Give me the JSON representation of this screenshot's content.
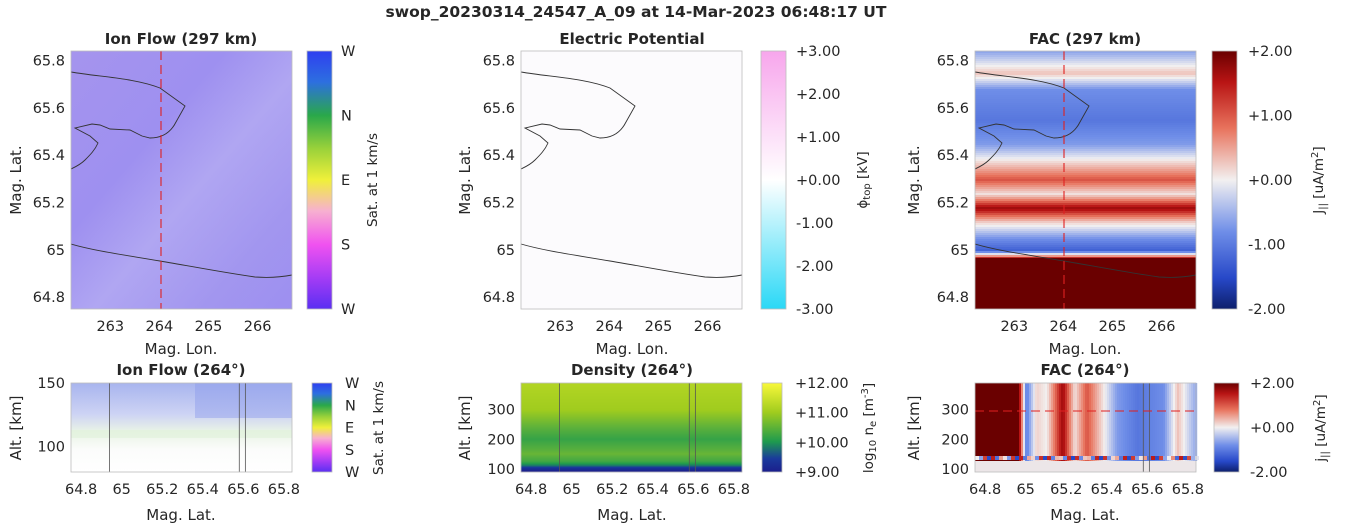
{
  "figure": {
    "title": "swop_20230314_24547_A_09 at 14-Mar-2023 06:48:17 UT"
  },
  "panels": {
    "ion_flow_map": {
      "title": "Ion Flow (297 km)",
      "xlabel": "Mag. Lon.",
      "ylabel": "Mag. Lat.",
      "xticks": [
        "263",
        "264",
        "265",
        "266"
      ],
      "yticks": [
        "65.8",
        "65.6",
        "65.4",
        "65.2",
        "65",
        "64.8"
      ],
      "cbar_label": "Sat. at 1 km/s",
      "cbar_ticks": [
        "W",
        "N",
        "E",
        "S",
        "W"
      ]
    },
    "potential_map": {
      "title": "Electric Potential",
      "xlabel": "Mag. Lon.",
      "ylabel": "Mag. Lat.",
      "xticks": [
        "263",
        "264",
        "265",
        "266"
      ],
      "yticks": [
        "65.8",
        "65.6",
        "65.4",
        "65.2",
        "65",
        "64.8"
      ],
      "cbar_label": "ϕ",
      "cbar_label_sub": "top",
      "cbar_label_unit": " [kV]",
      "cbar_ticks": [
        "+3.00",
        "+2.00",
        "+1.00",
        "+0.00",
        "-1.00",
        "-2.00",
        "-3.00"
      ]
    },
    "fac_map": {
      "title": "FAC (297 km)",
      "xlabel": "Mag. Lon.",
      "ylabel": "Mag. Lat.",
      "xticks": [
        "263",
        "264",
        "265",
        "266"
      ],
      "yticks": [
        "65.8",
        "65.6",
        "65.4",
        "65.2",
        "65",
        "64.8"
      ],
      "cbar_label": "J",
      "cbar_label_sub": "||",
      "cbar_label_unit": " [uA/m",
      "cbar_label_sup": "2",
      "cbar_label_end": "]",
      "cbar_ticks": [
        "+2.00",
        "+1.00",
        "+0.00",
        "-1.00",
        "-2.00"
      ]
    },
    "ion_flow_alt": {
      "title": "Ion Flow (264°)",
      "xlabel": "Mag. Lat.",
      "ylabel": "Alt. [km]",
      "xticks": [
        "64.8",
        "65",
        "65.2",
        "65.4",
        "65.6",
        "65.8"
      ],
      "yticks": [
        "150",
        "100"
      ],
      "cbar_label": "Sat. at 1 km/s",
      "cbar_ticks": [
        "W",
        "N",
        "E",
        "S",
        "W"
      ]
    },
    "density_alt": {
      "title": "Density (264°)",
      "xlabel": "Mag. Lat.",
      "ylabel": "Alt. [km]",
      "xticks": [
        "64.8",
        "65",
        "65.2",
        "65.4",
        "65.6",
        "65.8"
      ],
      "yticks": [
        "300",
        "200",
        "100"
      ],
      "cbar_label": "log",
      "cbar_label_sub": "10",
      "cbar_label_unit": " n",
      "cbar_label_sub2": "e",
      "cbar_label_unit2": " [m",
      "cbar_label_sup": "-3",
      "cbar_label_end": "]",
      "cbar_ticks": [
        "+12.00",
        "+11.00",
        "+10.00",
        "+9.00"
      ]
    },
    "fac_alt": {
      "title": "FAC (264°)",
      "xlabel": "Mag. Lat.",
      "ylabel": "Alt. [km]",
      "xticks": [
        "64.8",
        "65",
        "65.2",
        "65.4",
        "65.6",
        "65.8"
      ],
      "yticks": [
        "300",
        "200",
        "100"
      ],
      "cbar_label": "j",
      "cbar_label_sub": "||",
      "cbar_label_unit": " [uA/m",
      "cbar_label_sup": "2",
      "cbar_label_end": "]",
      "cbar_ticks": [
        "+2.00",
        "+0.00",
        "-2.00"
      ]
    }
  },
  "chart_data": [
    {
      "type": "heatmap",
      "title": "Ion Flow (297 km)",
      "xlabel": "Mag. Lon.",
      "ylabel": "Mag. Lat.",
      "xlim": [
        262.2,
        266.7
      ],
      "ylim": [
        64.75,
        65.84
      ],
      "crosshair_lon": 264,
      "colorbar": {
        "label": "Sat. at 1 km/s",
        "ticks": [
          "W",
          "N",
          "E",
          "S",
          "W"
        ]
      },
      "note_values": "uniform westward/northward flow, violet-blue shading",
      "coastline_lat_lon": [
        [
          265.85,
          262.2
        ],
        [
          265.73,
          263.2
        ],
        [
          265.69,
          264.0
        ],
        [
          265.62,
          264.5
        ],
        [
          265.52,
          264.2
        ],
        [
          265.49,
          263.6
        ],
        [
          265.52,
          263.3
        ],
        [
          265.53,
          262.9
        ],
        [
          265.48,
          262.4
        ],
        [
          265.4,
          262.7
        ],
        [
          265.33,
          262.2
        ]
      ],
      "coastline2_lat_lon": [
        [
          65.03,
          262.2
        ],
        [
          64.98,
          263.2
        ],
        [
          64.95,
          264.0
        ],
        [
          64.92,
          264.8
        ],
        [
          64.88,
          265.6
        ],
        [
          64.87,
          266.3
        ],
        [
          64.9,
          266.7
        ]
      ],
      "colors": {
        "base": "#9a8cf0"
      }
    },
    {
      "type": "heatmap",
      "title": "Electric Potential",
      "xlabel": "Mag. Lon.",
      "ylabel": "Mag. Lat.",
      "xlim": [
        262.2,
        266.7
      ],
      "ylim": [
        64.75,
        65.84
      ],
      "colorbar": {
        "ticks": [
          3,
          2,
          1,
          0,
          -1,
          -2,
          -3
        ]
      },
      "note_values": "potential near 0 kV everywhere"
    },
    {
      "type": "heatmap",
      "title": "FAC (297 km)",
      "xlabel": "Mag. Lon.",
      "ylabel": "Mag. Lat.",
      "xlim": [
        262.2,
        266.7
      ],
      "ylim": [
        64.75,
        65.84
      ],
      "crosshair_lon": 264,
      "colorbar": {
        "ticks": [
          2,
          1,
          0,
          -1,
          -2
        ]
      },
      "bands_lat_value": [
        [
          65.84,
          -0.6
        ],
        [
          65.75,
          0.3
        ],
        [
          65.68,
          -0.8
        ],
        [
          65.55,
          -1.0
        ],
        [
          65.45,
          -0.7
        ],
        [
          65.37,
          0.2
        ],
        [
          65.3,
          1.0
        ],
        [
          65.24,
          0.1
        ],
        [
          65.18,
          1.6
        ],
        [
          65.12,
          0.2
        ],
        [
          65.05,
          -0.8
        ],
        [
          65.0,
          -1.2
        ],
        [
          64.96,
          2.0
        ],
        [
          64.75,
          2.0
        ]
      ]
    },
    {
      "type": "heatmap",
      "title": "Ion Flow (264°)",
      "xlabel": "Mag. Lat.",
      "ylabel": "Alt. [km]",
      "xlim": [
        64.75,
        65.84
      ],
      "ylim": [
        80,
        150
      ],
      "colorbar": {
        "label": "Sat. at 1 km/s",
        "ticks": [
          "W",
          "N",
          "E",
          "S",
          "W"
        ]
      },
      "vlines_lat": [
        64.94,
        65.58,
        65.61
      ]
    },
    {
      "type": "heatmap",
      "title": "Density (264°)",
      "xlabel": "Mag. Lat.",
      "ylabel": "Alt. [km]",
      "xlim": [
        64.75,
        65.84
      ],
      "ylim": [
        90,
        390
      ],
      "colorbar": {
        "ticks": [
          12,
          11,
          10,
          9
        ]
      },
      "profile_alt_log10ne": [
        [
          90,
          9.0
        ],
        [
          100,
          9.3
        ],
        [
          110,
          9.8
        ],
        [
          125,
          10.3
        ],
        [
          150,
          10.6
        ],
        [
          200,
          10.2
        ],
        [
          250,
          10.6
        ],
        [
          300,
          11.0
        ],
        [
          390,
          11.2
        ]
      ],
      "vlines_lat": [
        64.94,
        65.58,
        65.61
      ]
    },
    {
      "type": "heatmap",
      "title": "FAC (264°)",
      "xlabel": "Mag. Lat.",
      "ylabel": "Alt. [km]",
      "xlim": [
        64.75,
        65.84
      ],
      "ylim": [
        90,
        390
      ],
      "colorbar": {
        "ticks": [
          2,
          0,
          -2
        ]
      },
      "hline_alt": 297,
      "vlines_lat": [
        65.58,
        65.61
      ],
      "columns_lat_value": [
        [
          64.75,
          2.0
        ],
        [
          64.96,
          2.0
        ],
        [
          65.0,
          -1.0
        ],
        [
          65.05,
          0.2
        ],
        [
          65.1,
          0.0
        ],
        [
          65.18,
          1.6
        ],
        [
          65.24,
          0.1
        ],
        [
          65.3,
          1.0
        ],
        [
          65.37,
          0.2
        ],
        [
          65.45,
          -0.7
        ],
        [
          65.55,
          -1.0
        ],
        [
          65.68,
          -0.8
        ],
        [
          65.75,
          0.3
        ],
        [
          65.84,
          -0.6
        ]
      ]
    }
  ]
}
